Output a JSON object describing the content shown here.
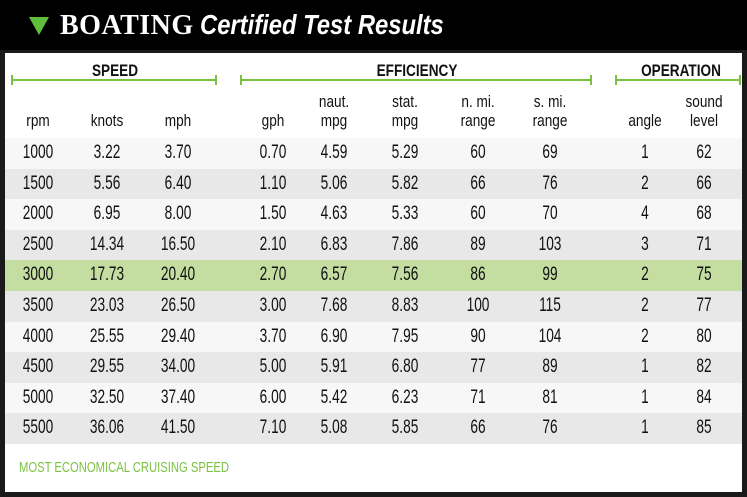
{
  "title": {
    "brand": "BOATING",
    "subtitle": "Certified Test Results"
  },
  "colors": {
    "accent": "#7cc242",
    "highlight_row": "#c3dea0",
    "alt_row": "#e8e8e8",
    "header_bg": "#000000"
  },
  "icons": {
    "title_marker": "triangle-down-icon"
  },
  "groups": [
    {
      "label": "SPEED"
    },
    {
      "label": "EFFICIENCY"
    },
    {
      "label": "OPERATION"
    }
  ],
  "columns": [
    {
      "l1": "",
      "l2": "rpm"
    },
    {
      "l1": "",
      "l2": "knots"
    },
    {
      "l1": "",
      "l2": "mph"
    },
    {
      "l1": "",
      "l2": "gph"
    },
    {
      "l1": "naut.",
      "l2": "mpg"
    },
    {
      "l1": "stat.",
      "l2": "mpg"
    },
    {
      "l1": "n. mi.",
      "l2": "range"
    },
    {
      "l1": "s. mi.",
      "l2": "range"
    },
    {
      "l1": "",
      "l2": "angle"
    },
    {
      "l1": "sound",
      "l2": "level"
    }
  ],
  "rows": [
    [
      "1000",
      "3.22",
      "3.70",
      "0.70",
      "4.59",
      "5.29",
      "60",
      "69",
      "1",
      "62"
    ],
    [
      "1500",
      "5.56",
      "6.40",
      "1.10",
      "5.06",
      "5.82",
      "66",
      "76",
      "2",
      "66"
    ],
    [
      "2000",
      "6.95",
      "8.00",
      "1.50",
      "4.63",
      "5.33",
      "60",
      "70",
      "4",
      "68"
    ],
    [
      "2500",
      "14.34",
      "16.50",
      "2.10",
      "6.83",
      "7.86",
      "89",
      "103",
      "3",
      "71"
    ],
    [
      "3000",
      "17.73",
      "20.40",
      "2.70",
      "6.57",
      "7.56",
      "86",
      "99",
      "2",
      "75"
    ],
    [
      "3500",
      "23.03",
      "26.50",
      "3.00",
      "7.68",
      "8.83",
      "100",
      "115",
      "2",
      "77"
    ],
    [
      "4000",
      "25.55",
      "29.40",
      "3.70",
      "6.90",
      "7.95",
      "90",
      "104",
      "2",
      "80"
    ],
    [
      "4500",
      "29.55",
      "34.00",
      "5.00",
      "5.91",
      "6.80",
      "77",
      "89",
      "1",
      "82"
    ],
    [
      "5000",
      "32.50",
      "37.40",
      "6.00",
      "5.42",
      "6.23",
      "71",
      "81",
      "1",
      "84"
    ],
    [
      "5500",
      "36.06",
      "41.50",
      "7.10",
      "5.08",
      "5.85",
      "66",
      "76",
      "1",
      "85"
    ]
  ],
  "highlighted_row_rpm": "3000",
  "footer": {
    "legend": "MOST ECONOMICAL CRUISING SPEED"
  }
}
